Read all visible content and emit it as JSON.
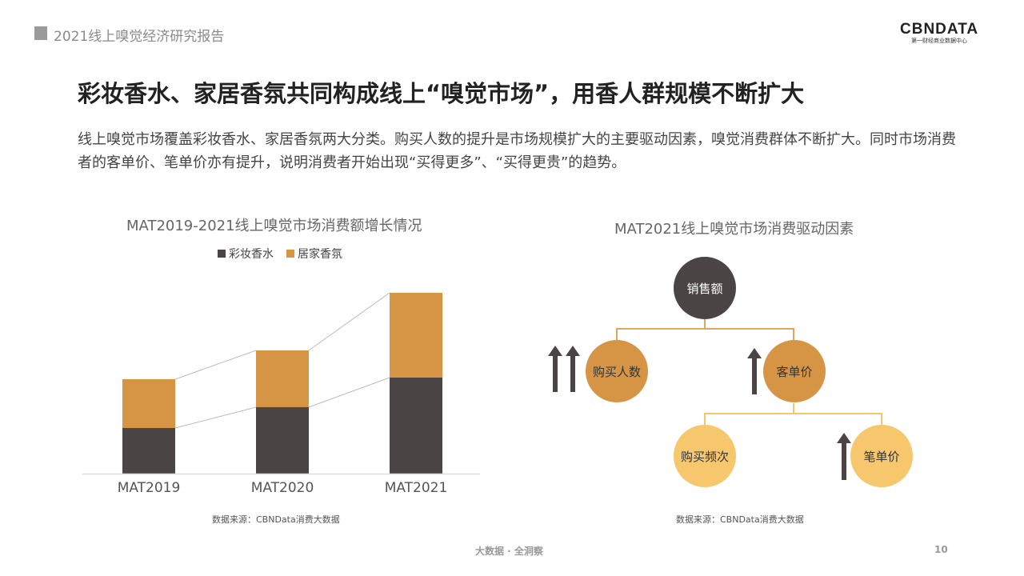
{
  "header": {
    "report_title": "2021线上嗅觉经济研究报告",
    "logo_text": "CBNDATA",
    "logo_sub": "第一财经商业数据中心"
  },
  "title": "彩妆香水、家居香氛共同构成线上“嗅觉市场”，用香人群规模不断扩大",
  "description": "线上嗅觉市场覆盖彩妆香水、家居香氛两大分类。购买人数的提升是市场规模扩大的主要驱动因素，嗅觉消费群体不断扩大。同时市场消费者的客单价、笔单价亦有提升，说明消费者开始出现“买得更多”、“买得更贵”的趋势。",
  "chart_data": {
    "type": "bar",
    "stacked": true,
    "title": "MAT2019-2021线上嗅觉市场消费额增长情况",
    "categories": [
      "MAT2019",
      "MAT2020",
      "MAT2021"
    ],
    "series": [
      {
        "name": "彩妆香水",
        "color": "#4a4544",
        "values": [
          57,
          83,
          120
        ]
      },
      {
        "name": "居家香氛",
        "color": "#d69544",
        "values": [
          61,
          71,
          106
        ]
      }
    ],
    "xlabel": "",
    "ylabel": "",
    "ylim": [
      0,
      240
    ],
    "grid": false,
    "legend": "top",
    "note": "values are relative (no axis shown)",
    "source": "数据来源：CBNData消费大数据"
  },
  "diagram": {
    "title": "MAT2021线上嗅觉市场消费驱动因素",
    "root": "销售额",
    "level1": [
      "购买人数",
      "客单价"
    ],
    "level2": [
      "购买频次",
      "笔单价"
    ],
    "source": "数据来源：CBNData消费大数据"
  },
  "footer": {
    "text": "大数据 · 全洞察",
    "page": "10"
  }
}
